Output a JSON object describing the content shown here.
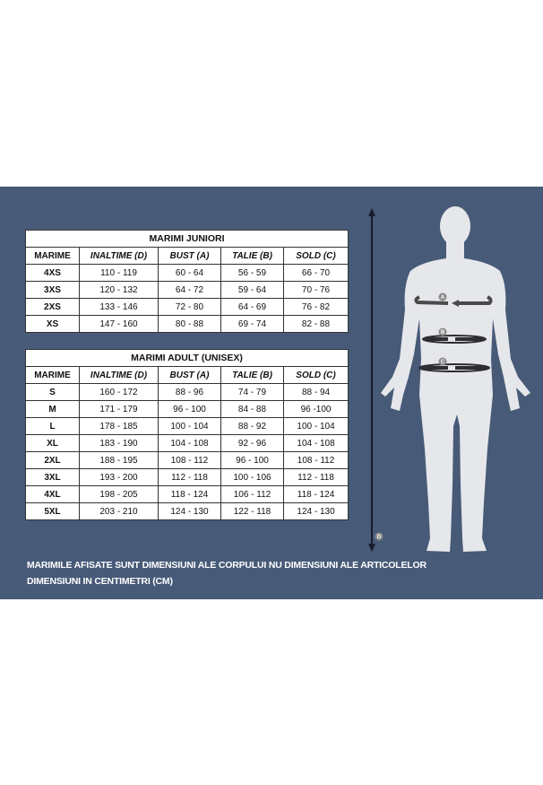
{
  "junior": {
    "title": "MARIMI JUNIORI",
    "headers": [
      "MARIME",
      "INALTIME (D)",
      "BUST (A)",
      "TALIE (B)",
      "SOLD (C)"
    ],
    "rows": [
      [
        "4XS",
        "110 - 119",
        "60 - 64",
        "56 - 59",
        "66 - 70"
      ],
      [
        "3XS",
        "120 - 132",
        "64 - 72",
        "59 - 64",
        "70 - 76"
      ],
      [
        "2XS",
        "133 - 146",
        "72 - 80",
        "64 - 69",
        "76 - 82"
      ],
      [
        "XS",
        "147 - 160",
        "80 - 88",
        "69 - 74",
        "82 - 88"
      ]
    ]
  },
  "adult": {
    "title": "MARIMI ADULT (UNISEX)",
    "headers": [
      "MARIME",
      "INALTIME (D)",
      "BUST (A)",
      "TALIE (B)",
      "SOLD (C)"
    ],
    "rows": [
      [
        "S",
        "160 - 172",
        "88 - 96",
        "74 - 79",
        "88 - 94"
      ],
      [
        "M",
        "171 - 179",
        "96 - 100",
        "84 - 88",
        "96 -100"
      ],
      [
        "L",
        "178 - 185",
        "100 - 104",
        "88 - 92",
        "100 - 104"
      ],
      [
        "XL",
        "183 - 190",
        "104 - 108",
        "92 - 96",
        "104 - 108"
      ],
      [
        "2XL",
        "188 - 195",
        "108 - 112",
        "96 - 100",
        "108 - 112"
      ],
      [
        "3XL",
        "193 - 200",
        "112 - 118",
        "100 - 106",
        "112 - 118"
      ],
      [
        "4XL",
        "198 - 205",
        "118 - 124",
        "106 - 112",
        "118 - 124"
      ],
      [
        "5XL",
        "203 - 210",
        "124 - 130",
        "122 - 118",
        "124 - 130"
      ]
    ]
  },
  "figure": {
    "markers": [
      "A",
      "B",
      "C",
      "D"
    ],
    "colors": {
      "background": "#475a78",
      "body": "#e6e7ea",
      "arrow": "#4a4a4a"
    }
  },
  "notes": [
    "MARIMILE AFISATE SUNT DIMENSIUNI ALE CORPULUI NU DIMENSIUNI ALE ARTICOLELOR",
    "DIMENSIUNI IN CENTIMETRI (CM)"
  ]
}
